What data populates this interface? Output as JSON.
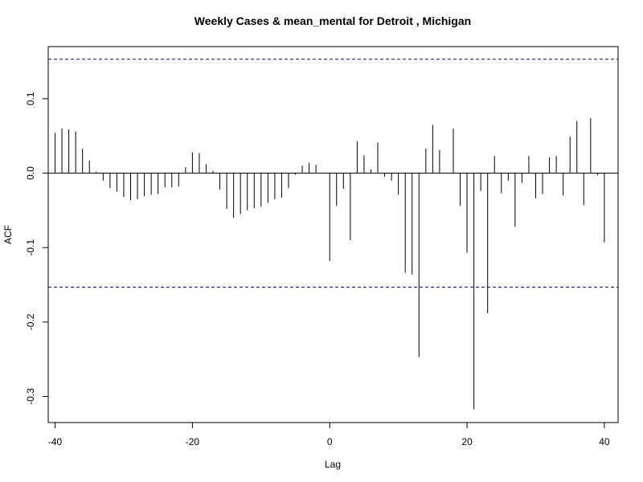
{
  "chart_data": {
    "type": "bar",
    "subtype": "acf-spike",
    "title": "Weekly Cases & mean_mental for Detroit , Michigan",
    "xlabel": "Lag",
    "ylabel": "ACF",
    "xlim": [
      -41,
      42
    ],
    "ylim": [
      -0.335,
      0.17
    ],
    "xticks": [
      -40,
      -20,
      0,
      20,
      40
    ],
    "xtick_labels": [
      "-40",
      "-20",
      "0",
      "20",
      "40"
    ],
    "yticks": [
      -0.3,
      -0.2,
      -0.1,
      0.0,
      0.1
    ],
    "ytick_labels": [
      "-0.3",
      "-0.2",
      "-0.1",
      "0.0",
      "0.1"
    ],
    "confidence_bounds": [
      0.153,
      -0.153
    ],
    "confidence_color": "#0000cc",
    "bar_color": "#000000",
    "grid": false,
    "lags": [
      -40,
      -39,
      -38,
      -37,
      -36,
      -35,
      -34,
      -33,
      -32,
      -31,
      -30,
      -29,
      -28,
      -27,
      -26,
      -25,
      -24,
      -23,
      -22,
      -21,
      -20,
      -19,
      -18,
      -17,
      -16,
      -15,
      -14,
      -13,
      -12,
      -11,
      -10,
      -9,
      -8,
      -7,
      -6,
      -5,
      -4,
      -3,
      -2,
      -1,
      0,
      1,
      2,
      3,
      4,
      5,
      6,
      7,
      8,
      9,
      10,
      11,
      12,
      13,
      14,
      15,
      16,
      17,
      18,
      19,
      20,
      21,
      22,
      23,
      24,
      25,
      26,
      27,
      28,
      29,
      30,
      31,
      32,
      33,
      34,
      35,
      36,
      37,
      38,
      39,
      40
    ],
    "values": [
      0.054,
      0.06,
      0.059,
      0.056,
      0.033,
      0.017,
      0.002,
      -0.01,
      -0.02,
      -0.025,
      -0.032,
      -0.036,
      -0.035,
      -0.031,
      -0.029,
      -0.028,
      -0.019,
      -0.019,
      -0.018,
      0.008,
      0.028,
      0.027,
      0.012,
      0.003,
      -0.022,
      -0.048,
      -0.06,
      -0.055,
      -0.05,
      -0.047,
      -0.045,
      -0.04,
      -0.035,
      -0.033,
      -0.02,
      -0.002,
      0.01,
      0.014,
      0.011,
      0.0,
      -0.118,
      -0.044,
      -0.021,
      -0.09,
      0.043,
      0.024,
      0.005,
      0.041,
      -0.005,
      -0.01,
      -0.029,
      -0.134,
      -0.136,
      -0.247,
      0.033,
      0.065,
      0.031,
      0.0,
      0.06,
      -0.044,
      -0.107,
      -0.317,
      -0.024,
      -0.188,
      0.023,
      -0.027,
      -0.01,
      -0.072,
      -0.013,
      0.023,
      -0.034,
      -0.028,
      0.021,
      0.023,
      -0.03,
      0.049,
      0.07,
      -0.043,
      0.074,
      -0.003,
      -0.093
    ]
  }
}
